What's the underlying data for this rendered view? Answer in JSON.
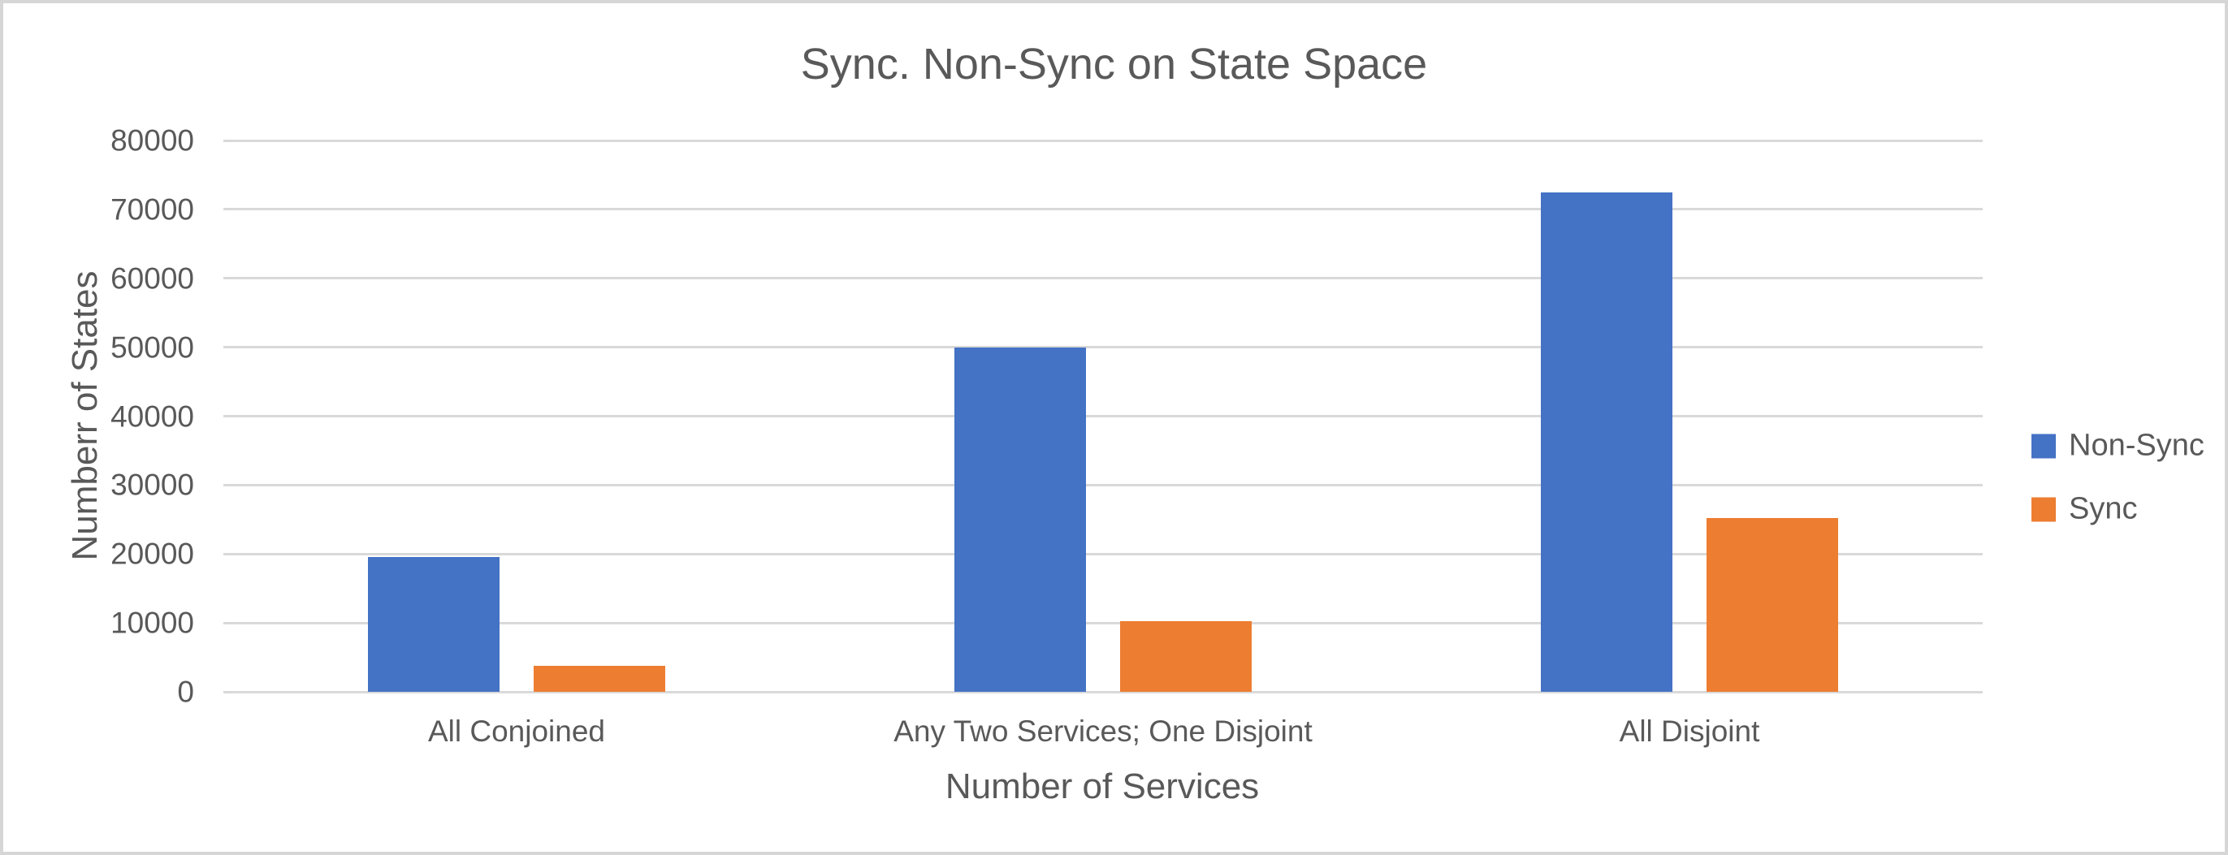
{
  "chart_data": {
    "type": "bar",
    "title": "Sync. Non-Sync on State Space",
    "xlabel": "Number of Services",
    "ylabel": "Numberr of States",
    "categories": [
      "All Conjoined",
      "Any Two Services; One Disjoint",
      "All Disjoint"
    ],
    "series": [
      {
        "name": "Non-Sync",
        "color": "#4472C4",
        "values": [
          19600,
          50000,
          72500
        ]
      },
      {
        "name": "Sync",
        "color": "#ED7D31",
        "values": [
          3800,
          10300,
          25200
        ]
      }
    ],
    "ylim": [
      0,
      80000
    ],
    "ytick_step": 10000,
    "yticks": [
      "0",
      "10000",
      "20000",
      "30000",
      "40000",
      "50000",
      "60000",
      "70000",
      "80000"
    ],
    "grid": "horizontal",
    "legend_position": "right-middle",
    "colors": {
      "grid": "#D9D9D9",
      "text": "#595959",
      "background": "#FFFFFF",
      "frame_border": "#D6D6D6"
    }
  }
}
